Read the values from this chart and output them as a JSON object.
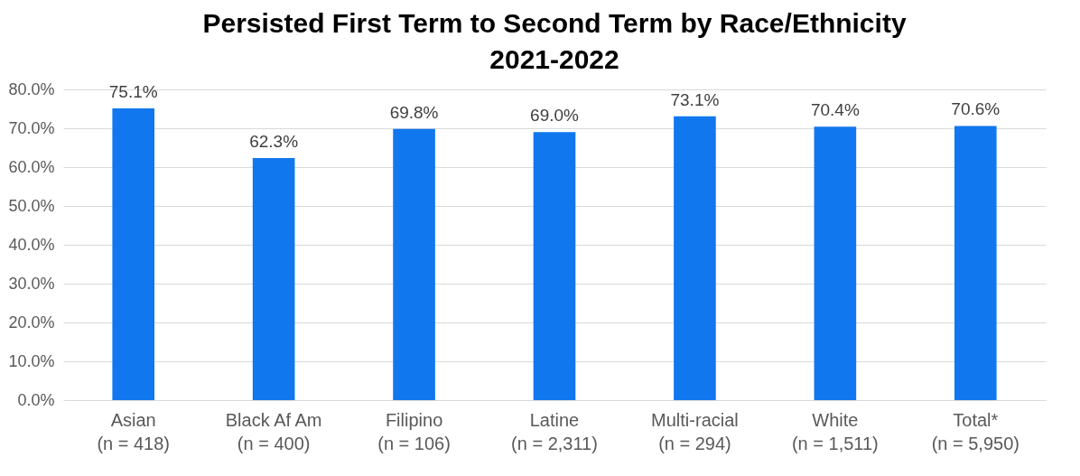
{
  "chart_data": {
    "type": "bar",
    "title": "Persisted First Term to Second Term by Race/Ethnicity\n2021-2022",
    "categories": [
      "Asian\n(n = 418)",
      "Black Af Am\n(n = 400)",
      "Filipino\n(n = 106)",
      "Latine\n(n = 2,311)",
      "Multi-racial\n(n = 294)",
      "White\n(n = 1,511)",
      "Total*\n(n = 5,950)"
    ],
    "values": [
      75.1,
      62.3,
      69.8,
      69.0,
      73.1,
      70.4,
      70.6
    ],
    "value_labels": [
      "75.1%",
      "62.3%",
      "69.8%",
      "69.0%",
      "73.1%",
      "70.4%",
      "70.6%"
    ],
    "color": "#1177ee",
    "ylim": [
      0,
      80
    ],
    "yticks": [
      {
        "value": 0,
        "label": "0.0%"
      },
      {
        "value": 10,
        "label": "10.0%"
      },
      {
        "value": 20,
        "label": "20.0%"
      },
      {
        "value": 30,
        "label": "30.0%"
      },
      {
        "value": 40,
        "label": "40.0%"
      },
      {
        "value": 50,
        "label": "50.0%"
      },
      {
        "value": 60,
        "label": "60.0%"
      },
      {
        "value": 70,
        "label": "70.0%"
      },
      {
        "value": 80,
        "label": "80.0%"
      }
    ],
    "grid": "y"
  }
}
